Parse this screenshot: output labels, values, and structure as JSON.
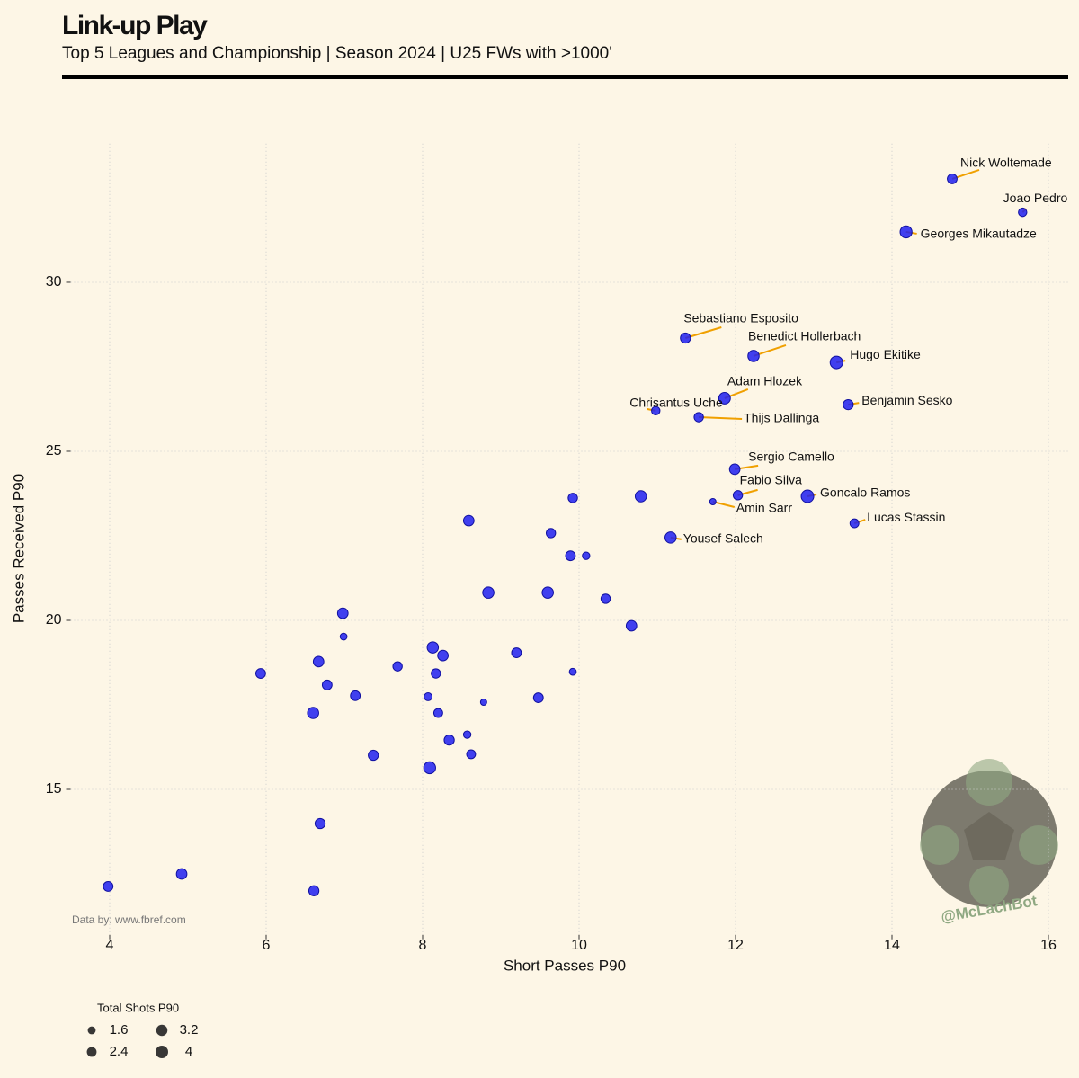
{
  "chart_data": {
    "type": "scatter",
    "title": "Link-up Play",
    "subtitle": "Top 5 Leagues and Championship | Season 2024 | U25 FWs with >1000'",
    "xlabel": "Short Passes P90",
    "ylabel": "Passes Received P90",
    "source": "Data by: www.fbref.com",
    "watermark": "@McLachBot",
    "xlim": [
      3.5,
      16.25
    ],
    "ylim": [
      10.7,
      34.1
    ],
    "xticks": [
      4,
      6,
      8,
      10,
      12,
      14,
      16
    ],
    "yticks": [
      15,
      20,
      25,
      30
    ],
    "grid": true,
    "color": "#1f1ff0",
    "label_color": "#f0a000",
    "labels": [
      "Nick Woltemade",
      "Joao Pedro",
      "Georges Mikautadze",
      "Sebastiano Esposito",
      "Benedict Hollerbach",
      "Hugo Ekitike",
      "Adam Hlozek",
      "Chrisantus Uche",
      "Thijs Dallinga",
      "Benjamin Sesko",
      "Sergio Camello",
      "Fabio Silva",
      "Amin Sarr",
      "Goncalo Ramos",
      "Lucas Stassin",
      "Yousef Salech",
      null,
      null,
      null,
      null,
      null,
      null,
      null,
      null,
      null,
      null,
      null,
      null,
      null,
      null,
      null,
      null,
      null,
      null,
      null,
      null,
      null,
      null,
      null,
      null,
      null,
      null,
      null,
      null,
      null,
      null,
      null,
      null,
      null,
      null,
      null,
      null
    ],
    "x": [
      14.77,
      15.67,
      14.18,
      11.36,
      12.23,
      13.29,
      11.86,
      10.98,
      11.53,
      13.44,
      11.99,
      12.03,
      11.71,
      12.92,
      13.52,
      11.17,
      9.92,
      10.79,
      8.59,
      9.64,
      9.89,
      10.09,
      8.84,
      9.6,
      10.34,
      10.67,
      6.98,
      6.99,
      8.13,
      8.26,
      6.67,
      9.2,
      5.93,
      7.68,
      8.17,
      9.92,
      6.78,
      7.14,
      8.07,
      8.78,
      9.48,
      6.6,
      8.2,
      8.57,
      8.34,
      8.62,
      7.37,
      8.09,
      6.69,
      4.92,
      3.98,
      6.61
    ],
    "y": [
      33.06,
      32.07,
      31.49,
      28.35,
      27.82,
      27.63,
      26.57,
      26.2,
      26.01,
      26.38,
      24.47,
      23.7,
      23.51,
      23.67,
      22.87,
      22.45,
      23.62,
      23.67,
      22.95,
      22.58,
      21.91,
      21.91,
      20.82,
      20.82,
      20.64,
      19.84,
      20.21,
      19.52,
      19.2,
      18.96,
      18.78,
      19.04,
      18.43,
      18.64,
      18.43,
      18.48,
      18.09,
      17.77,
      17.74,
      17.58,
      17.71,
      17.26,
      17.26,
      16.62,
      16.46,
      16.04,
      16.01,
      15.64,
      13.99,
      12.5,
      12.13,
      12.0
    ],
    "sizes": [
      2.4,
      1.8,
      3.6,
      2.6,
      3.2,
      4.0,
      3.4,
      1.8,
      2.2,
      2.6,
      2.8,
      2.2,
      1.0,
      4.0,
      2.0,
      3.2,
      2.2,
      3.2,
      2.8,
      2.2,
      2.4,
      1.4,
      3.2,
      3.2,
      2.2,
      2.8,
      2.8,
      1.2,
      3.2,
      2.8,
      2.8,
      2.4,
      2.4,
      2.2,
      2.2,
      1.2,
      2.4,
      2.4,
      1.6,
      1.0,
      2.4,
      3.2,
      2.0,
      1.4,
      2.6,
      2.0,
      2.6,
      3.6,
      2.6,
      2.8,
      2.4,
      2.6
    ],
    "size_legend": {
      "title": "Total Shots P90",
      "values": [
        1.6,
        2.4,
        3.2,
        4.0
      ]
    }
  }
}
